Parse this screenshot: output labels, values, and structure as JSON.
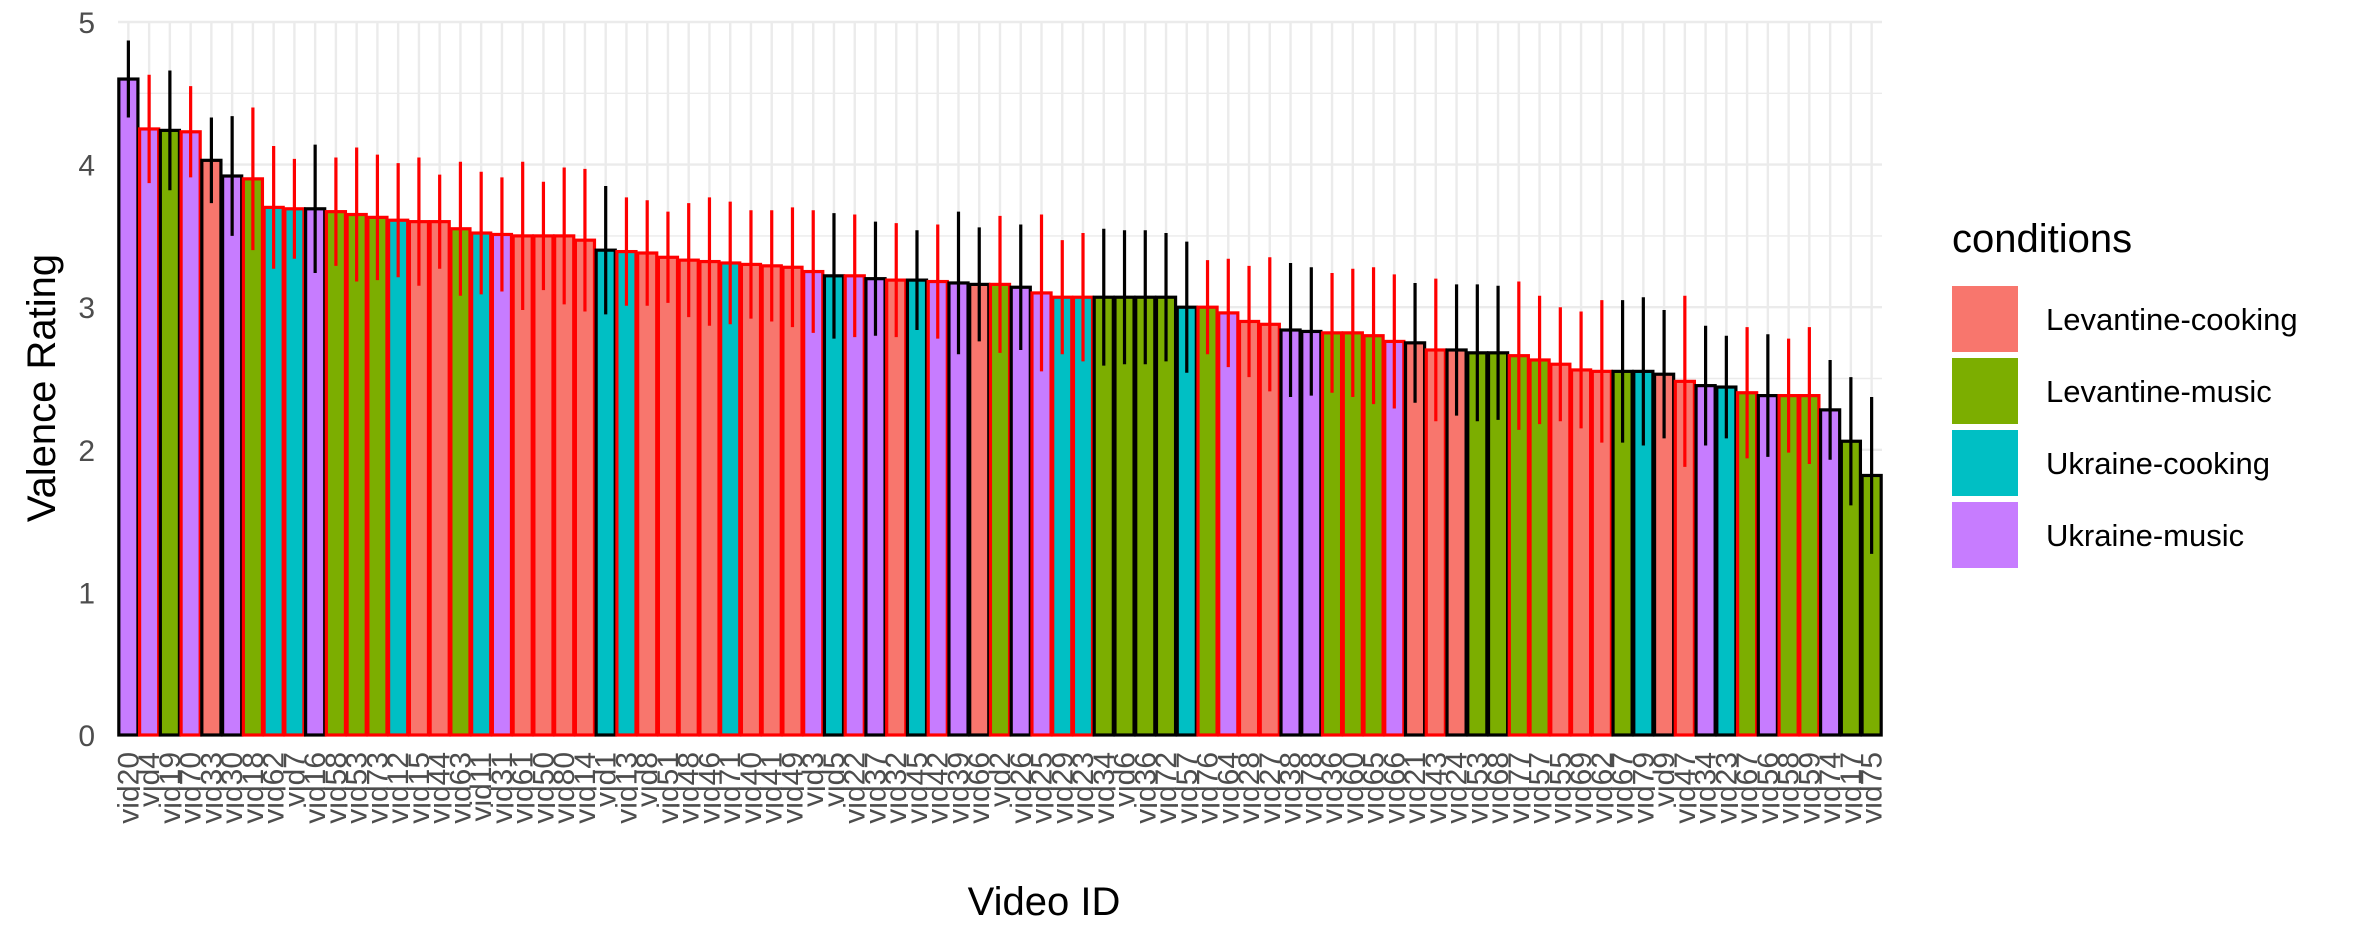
{
  "chart_data": {
    "type": "bar",
    "title": "",
    "xlabel": "Video ID",
    "ylabel": "Valence Rating",
    "ylim": [
      0,
      5
    ],
    "yticks": [
      0,
      1,
      2,
      3,
      4,
      5
    ],
    "grid": true,
    "legend": {
      "title": "conditions",
      "placement": "right",
      "entries": [
        {
          "name": "Levantine-cooking",
          "color": "#F8766D"
        },
        {
          "name": "Levantine-music",
          "color": "#7CAE00"
        },
        {
          "name": "Ukraine-cooking",
          "color": "#00BFC4"
        },
        {
          "name": "Ukraine-music",
          "color": "#C77CFF"
        }
      ]
    },
    "error_colors": {
      "outlined_black": "#000000",
      "outlined_red": "#ff0000"
    },
    "bars": [
      {
        "id": "vid20",
        "value": 4.6,
        "err": 0.27,
        "condition": "Ukraine-music",
        "outline": "black"
      },
      {
        "id": "vid4",
        "value": 4.25,
        "err": 0.38,
        "condition": "Ukraine-music",
        "outline": "red"
      },
      {
        "id": "vid19",
        "value": 4.24,
        "err": 0.42,
        "condition": "Levantine-music",
        "outline": "black"
      },
      {
        "id": "vid70",
        "value": 4.23,
        "err": 0.32,
        "condition": "Ukraine-music",
        "outline": "red"
      },
      {
        "id": "vid33",
        "value": 4.03,
        "err": 0.3,
        "condition": "Levantine-cooking",
        "outline": "black"
      },
      {
        "id": "vid30",
        "value": 3.92,
        "err": 0.42,
        "condition": "Ukraine-music",
        "outline": "black"
      },
      {
        "id": "vid18",
        "value": 3.9,
        "err": 0.5,
        "condition": "Levantine-music",
        "outline": "red"
      },
      {
        "id": "vid62",
        "value": 3.7,
        "err": 0.43,
        "condition": "Ukraine-cooking",
        "outline": "red"
      },
      {
        "id": "vid7",
        "value": 3.69,
        "err": 0.35,
        "condition": "Ukraine-cooking",
        "outline": "red"
      },
      {
        "id": "vid16",
        "value": 3.69,
        "err": 0.45,
        "condition": "Ukraine-music",
        "outline": "black"
      },
      {
        "id": "vid58",
        "value": 3.67,
        "err": 0.38,
        "condition": "Levantine-music",
        "outline": "red"
      },
      {
        "id": "vid53",
        "value": 3.65,
        "err": 0.47,
        "condition": "Levantine-music",
        "outline": "red"
      },
      {
        "id": "vid73",
        "value": 3.63,
        "err": 0.44,
        "condition": "Levantine-music",
        "outline": "red"
      },
      {
        "id": "vid12",
        "value": 3.61,
        "err": 0.4,
        "condition": "Ukraine-cooking",
        "outline": "red"
      },
      {
        "id": "vid15",
        "value": 3.6,
        "err": 0.45,
        "condition": "Levantine-cooking",
        "outline": "red"
      },
      {
        "id": "vid44",
        "value": 3.6,
        "err": 0.33,
        "condition": "Levantine-cooking",
        "outline": "red"
      },
      {
        "id": "vid63",
        "value": 3.55,
        "err": 0.47,
        "condition": "Levantine-music",
        "outline": "red"
      },
      {
        "id": "vid11",
        "value": 3.52,
        "err": 0.43,
        "condition": "Ukraine-cooking",
        "outline": "red"
      },
      {
        "id": "vid31",
        "value": 3.51,
        "err": 0.4,
        "condition": "Ukraine-music",
        "outline": "red"
      },
      {
        "id": "vid61",
        "value": 3.5,
        "err": 0.52,
        "condition": "Levantine-cooking",
        "outline": "red"
      },
      {
        "id": "vid50",
        "value": 3.5,
        "err": 0.38,
        "condition": "Levantine-cooking",
        "outline": "red"
      },
      {
        "id": "vid80",
        "value": 3.5,
        "err": 0.48,
        "condition": "Levantine-cooking",
        "outline": "red"
      },
      {
        "id": "vid14",
        "value": 3.47,
        "err": 0.5,
        "condition": "Levantine-cooking",
        "outline": "red"
      },
      {
        "id": "vid1",
        "value": 3.4,
        "err": 0.45,
        "condition": "Ukraine-cooking",
        "outline": "black"
      },
      {
        "id": "vid13",
        "value": 3.39,
        "err": 0.38,
        "condition": "Ukraine-cooking",
        "outline": "red"
      },
      {
        "id": "vid8",
        "value": 3.38,
        "err": 0.37,
        "condition": "Levantine-cooking",
        "outline": "red"
      },
      {
        "id": "vid51",
        "value": 3.35,
        "err": 0.32,
        "condition": "Levantine-cooking",
        "outline": "red"
      },
      {
        "id": "vid48",
        "value": 3.33,
        "err": 0.4,
        "condition": "Levantine-cooking",
        "outline": "red"
      },
      {
        "id": "vid46",
        "value": 3.32,
        "err": 0.45,
        "condition": "Levantine-cooking",
        "outline": "red"
      },
      {
        "id": "vid71",
        "value": 3.31,
        "err": 0.43,
        "condition": "Ukraine-cooking",
        "outline": "red"
      },
      {
        "id": "vid40",
        "value": 3.3,
        "err": 0.38,
        "condition": "Levantine-cooking",
        "outline": "red"
      },
      {
        "id": "vid41",
        "value": 3.29,
        "err": 0.39,
        "condition": "Levantine-cooking",
        "outline": "red"
      },
      {
        "id": "vid49",
        "value": 3.28,
        "err": 0.42,
        "condition": "Levantine-cooking",
        "outline": "red"
      },
      {
        "id": "vid3",
        "value": 3.25,
        "err": 0.43,
        "condition": "Ukraine-music",
        "outline": "red"
      },
      {
        "id": "vid5",
        "value": 3.22,
        "err": 0.44,
        "condition": "Ukraine-cooking",
        "outline": "black"
      },
      {
        "id": "vid22",
        "value": 3.22,
        "err": 0.43,
        "condition": "Ukraine-music",
        "outline": "red"
      },
      {
        "id": "vid37",
        "value": 3.2,
        "err": 0.4,
        "condition": "Ukraine-music",
        "outline": "black"
      },
      {
        "id": "vid32",
        "value": 3.19,
        "err": 0.4,
        "condition": "Levantine-cooking",
        "outline": "red"
      },
      {
        "id": "vid45",
        "value": 3.19,
        "err": 0.35,
        "condition": "Ukraine-cooking",
        "outline": "black"
      },
      {
        "id": "vid42",
        "value": 3.18,
        "err": 0.4,
        "condition": "Ukraine-music",
        "outline": "red"
      },
      {
        "id": "vid39",
        "value": 3.17,
        "err": 0.5,
        "condition": "Ukraine-music",
        "outline": "black"
      },
      {
        "id": "vid66",
        "value": 3.16,
        "err": 0.4,
        "condition": "Levantine-cooking",
        "outline": "black"
      },
      {
        "id": "vid2",
        "value": 3.16,
        "err": 0.48,
        "condition": "Levantine-music",
        "outline": "red"
      },
      {
        "id": "vid26",
        "value": 3.14,
        "err": 0.44,
        "condition": "Ukraine-music",
        "outline": "black"
      },
      {
        "id": "vid25",
        "value": 3.1,
        "err": 0.55,
        "condition": "Ukraine-music",
        "outline": "red"
      },
      {
        "id": "vid29",
        "value": 3.07,
        "err": 0.4,
        "condition": "Ukraine-cooking",
        "outline": "red"
      },
      {
        "id": "vid23",
        "value": 3.07,
        "err": 0.45,
        "condition": "Ukraine-cooking",
        "outline": "red"
      },
      {
        "id": "vid34",
        "value": 3.07,
        "err": 0.48,
        "condition": "Levantine-music",
        "outline": "black"
      },
      {
        "id": "vid6",
        "value": 3.07,
        "err": 0.47,
        "condition": "Levantine-music",
        "outline": "black"
      },
      {
        "id": "vid36",
        "value": 3.07,
        "err": 0.47,
        "condition": "Levantine-music",
        "outline": "black"
      },
      {
        "id": "vid72",
        "value": 3.07,
        "err": 0.45,
        "condition": "Levantine-music",
        "outline": "black"
      },
      {
        "id": "vid57",
        "value": 3.0,
        "err": 0.46,
        "condition": "Ukraine-cooking",
        "outline": "black"
      },
      {
        "id": "vid76",
        "value": 3.0,
        "err": 0.33,
        "condition": "Levantine-music",
        "outline": "red"
      },
      {
        "id": "vid64",
        "value": 2.96,
        "err": 0.38,
        "condition": "Ukraine-music",
        "outline": "red"
      },
      {
        "id": "vid28",
        "value": 2.9,
        "err": 0.39,
        "condition": "Levantine-cooking",
        "outline": "red"
      },
      {
        "id": "vid27",
        "value": 2.88,
        "err": 0.47,
        "condition": "Levantine-cooking",
        "outline": "red"
      },
      {
        "id": "vid38",
        "value": 2.84,
        "err": 0.47,
        "condition": "Ukraine-music",
        "outline": "black"
      },
      {
        "id": "vid78",
        "value": 2.83,
        "err": 0.45,
        "condition": "Ukraine-music",
        "outline": "black"
      },
      {
        "id": "vid36b",
        "value": 2.82,
        "err": 0.42,
        "condition": "Levantine-music",
        "outline": "red"
      },
      {
        "id": "vid60",
        "value": 2.82,
        "err": 0.45,
        "condition": "Levantine-music",
        "outline": "red"
      },
      {
        "id": "vid65",
        "value": 2.8,
        "err": 0.48,
        "condition": "Levantine-music",
        "outline": "red"
      },
      {
        "id": "vid66b",
        "value": 2.76,
        "err": 0.47,
        "condition": "Ukraine-music",
        "outline": "red"
      },
      {
        "id": "vid21",
        "value": 2.75,
        "err": 0.42,
        "condition": "Levantine-cooking",
        "outline": "black"
      },
      {
        "id": "vid43",
        "value": 2.7,
        "err": 0.5,
        "condition": "Levantine-cooking",
        "outline": "red"
      },
      {
        "id": "vid24",
        "value": 2.7,
        "err": 0.46,
        "condition": "Levantine-cooking",
        "outline": "black"
      },
      {
        "id": "vid53b",
        "value": 2.68,
        "err": 0.48,
        "condition": "Levantine-music",
        "outline": "black"
      },
      {
        "id": "vid68",
        "value": 2.68,
        "err": 0.47,
        "condition": "Levantine-music",
        "outline": "black"
      },
      {
        "id": "vid77",
        "value": 2.66,
        "err": 0.52,
        "condition": "Levantine-music",
        "outline": "red"
      },
      {
        "id": "vid57b",
        "value": 2.63,
        "err": 0.45,
        "condition": "Levantine-music",
        "outline": "red"
      },
      {
        "id": "vid55",
        "value": 2.6,
        "err": 0.4,
        "condition": "Levantine-cooking",
        "outline": "red"
      },
      {
        "id": "vid69",
        "value": 2.56,
        "err": 0.41,
        "condition": "Levantine-cooking",
        "outline": "red"
      },
      {
        "id": "vid62b",
        "value": 2.55,
        "err": 0.5,
        "condition": "Levantine-cooking",
        "outline": "red"
      },
      {
        "id": "vid67",
        "value": 2.55,
        "err": 0.5,
        "condition": "Levantine-music",
        "outline": "black"
      },
      {
        "id": "vid79",
        "value": 2.55,
        "err": 0.52,
        "condition": "Ukraine-cooking",
        "outline": "black"
      },
      {
        "id": "vid9",
        "value": 2.53,
        "err": 0.45,
        "condition": "Levantine-cooking",
        "outline": "black"
      },
      {
        "id": "vid47",
        "value": 2.48,
        "err": 0.6,
        "condition": "Levantine-cooking",
        "outline": "red"
      },
      {
        "id": "vid34b",
        "value": 2.45,
        "err": 0.42,
        "condition": "Ukraine-music",
        "outline": "black"
      },
      {
        "id": "vid23b",
        "value": 2.44,
        "err": 0.36,
        "condition": "Ukraine-cooking",
        "outline": "black"
      },
      {
        "id": "vid67b",
        "value": 2.4,
        "err": 0.46,
        "condition": "Levantine-music",
        "outline": "red"
      },
      {
        "id": "vid56",
        "value": 2.38,
        "err": 0.43,
        "condition": "Ukraine-music",
        "outline": "black"
      },
      {
        "id": "vid58b",
        "value": 2.38,
        "err": 0.4,
        "condition": "Levantine-music",
        "outline": "red"
      },
      {
        "id": "vid59",
        "value": 2.38,
        "err": 0.48,
        "condition": "Levantine-music",
        "outline": "red"
      },
      {
        "id": "vid74",
        "value": 2.28,
        "err": 0.35,
        "condition": "Ukraine-music",
        "outline": "black"
      },
      {
        "id": "vid17",
        "value": 2.06,
        "err": 0.45,
        "condition": "Levantine-music",
        "outline": "black"
      },
      {
        "id": "vid75",
        "value": 1.82,
        "err": 0.55,
        "condition": "Levantine-music",
        "outline": "black"
      }
    ]
  }
}
